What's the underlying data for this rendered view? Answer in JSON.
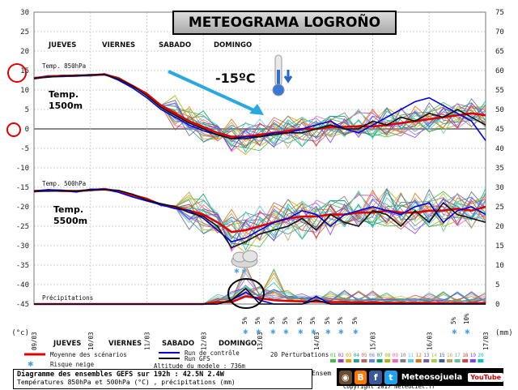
{
  "title": "METEOGRAMA LOGROÑO",
  "chart_data": {
    "type": "line",
    "y_left_ticks": [
      "30",
      "25",
      "20",
      "15",
      "10",
      "5",
      "0",
      "-5",
      "-10",
      "-15",
      "-20",
      "-25",
      "-30",
      "-35",
      "-40",
      "-45",
      "(°c)"
    ],
    "y_right_ticks": [
      "75",
      "70",
      "65",
      "60",
      "55",
      "50",
      "45",
      "40",
      "35",
      "30",
      "25",
      "20",
      "15",
      "10",
      "5",
      "0",
      "(mm)"
    ],
    "ylim_temp": [
      -45,
      30
    ],
    "ylim_precip": [
      0,
      75
    ],
    "days_top": [
      "JUEVES",
      "VIERNES",
      "SABADO",
      "DOMINGO"
    ],
    "days_bottom": [
      "JUEVES",
      "VIERNES",
      "SABADO",
      "DOMINGO"
    ],
    "date_ticks": [
      "09/03",
      "10/03",
      "11/03",
      "12/03",
      "13/03",
      "14/03",
      "15/03",
      "16/03",
      "17/03"
    ],
    "annotations": {
      "temp850_label": "Temp. 850hPa",
      "temp500_label": "Temp. 500hPa",
      "precip_label": "Précipitations",
      "temp1500": [
        "Temp.",
        "1500m"
      ],
      "temp5500": [
        "Temp.",
        "5500m"
      ],
      "arrow_text": "-15ºC",
      "circle_15": "15",
      "circle_0": "0",
      "snow_label": "5%",
      "snow_label_alt": "10%"
    },
    "x_steps": [
      0,
      1,
      2,
      3,
      4,
      5,
      6,
      7,
      8,
      9,
      10,
      11,
      12,
      13,
      14,
      15,
      16,
      17,
      18,
      19,
      20,
      21,
      22,
      23,
      24,
      25,
      26,
      27,
      28,
      29,
      30,
      31,
      32
    ],
    "series": [
      {
        "name": "Moyenne des scénarios",
        "color": "#e00000",
        "t850": [
          13,
          13.5,
          13.6,
          13.7,
          13.8,
          14,
          13,
          11,
          9,
          6,
          4,
          2,
          0.5,
          -1,
          -2,
          -2,
          -1.5,
          -1,
          -0.5,
          0,
          0,
          0.5,
          0.5,
          0.7,
          0.6,
          1,
          1.5,
          2,
          2.5,
          3,
          3.5,
          4,
          3.5
        ],
        "t500": [
          -16,
          -15.8,
          -15.9,
          -16,
          -15.7,
          -15.5,
          -16,
          -17,
          -18,
          -19.5,
          -20,
          -21,
          -22,
          -24,
          -26.5,
          -26,
          -25,
          -24,
          -23,
          -22.5,
          -22.5,
          -22,
          -22,
          -21.5,
          -21.5,
          -21,
          -21.5,
          -21.5,
          -21,
          -21,
          -20.5,
          -21,
          -20
        ],
        "precip": [
          0,
          0,
          0,
          0,
          0,
          0,
          0,
          0,
          0,
          0,
          0,
          0,
          0,
          0.5,
          0.5,
          2,
          1.5,
          1,
          0.8,
          0.7,
          0.6,
          0.5,
          0.5,
          0.4,
          0.4,
          0.3,
          0.3,
          0.3,
          0.3,
          0.2,
          0.2,
          0.2,
          0.3
        ]
      },
      {
        "name": "Run de contrôle",
        "color": "#0000dd",
        "t850": [
          13,
          13.4,
          13.5,
          13.6,
          13.8,
          14,
          12.5,
          10.5,
          8,
          5,
          3,
          1,
          -0.5,
          -1.5,
          -2.5,
          -2,
          -2,
          -1,
          -1,
          0,
          1,
          2,
          0,
          -1,
          1,
          3,
          5,
          7,
          8,
          6,
          4,
          2,
          -3
        ],
        "t500": [
          -16,
          -15.6,
          -15.8,
          -16.2,
          -15.5,
          -15.5,
          -16.3,
          -17.5,
          -18.5,
          -19.5,
          -20.5,
          -21,
          -23,
          -26,
          -29,
          -28,
          -26,
          -24,
          -23,
          -21,
          -22,
          -25,
          -22,
          -21,
          -20,
          -21,
          -22,
          -20,
          -19,
          -24,
          -21,
          -20,
          -22
        ],
        "precip": [
          0,
          0,
          0,
          0,
          0,
          0,
          0,
          0,
          0,
          0,
          0,
          0,
          0,
          0,
          1,
          3,
          1,
          0,
          0,
          0,
          2,
          0,
          0,
          0,
          0,
          0,
          0,
          0,
          0,
          0,
          0,
          0,
          0
        ]
      },
      {
        "name": "Run GFS",
        "color": "#111111",
        "t850": [
          13,
          13.3,
          13.6,
          13.7,
          13.9,
          14,
          12.8,
          11,
          8.5,
          5.5,
          3.5,
          1.5,
          0,
          -1.5,
          -2.5,
          -2.5,
          -2,
          -1.5,
          -1,
          -1,
          0,
          1,
          0,
          0,
          2,
          1,
          3,
          2,
          4,
          3,
          5,
          3,
          1
        ],
        "t500": [
          -16,
          -16,
          -15.9,
          -16,
          -15.7,
          -15.6,
          -15.8,
          -16.8,
          -18.3,
          -19.2,
          -20,
          -21.5,
          -22.5,
          -25,
          -30.5,
          -29,
          -27,
          -26,
          -25,
          -23,
          -26,
          -22,
          -24,
          -25,
          -21,
          -22,
          -25,
          -21,
          -24,
          -19,
          -22,
          -23,
          -24
        ],
        "precip": [
          0,
          0,
          0,
          0,
          0,
          0,
          0,
          0,
          0,
          0,
          0,
          0,
          0,
          0,
          1,
          4,
          0,
          0,
          0,
          0,
          1,
          0,
          0,
          0,
          0,
          0,
          0,
          0,
          0,
          0,
          0,
          0,
          0
        ]
      }
    ],
    "legend": {
      "mean": "Moyenne des scénarios",
      "control": "Run de contrôle",
      "gfs": "Run GFS",
      "snow": "Risque neige",
      "altitude": "Altitude du modele : 736m",
      "perturbations": "20 Perturbations",
      "pert_numbers": [
        "01",
        "02",
        "03",
        "04",
        "05",
        "06",
        "07",
        "08",
        "09",
        "10",
        "11",
        "12",
        "13",
        "14",
        "15",
        "16",
        "17",
        "18",
        "19",
        "20"
      ],
      "ensemble": "Ensem"
    },
    "grid": true
  },
  "footer": {
    "line1": "Diagramme des ensembles GEFS sur 192h : 42.5N 2.4W",
    "line2": "Températures 850hPa et 500hPa (°C) , précipitations (mm)",
    "brand": "Meteosojuela",
    "youtube": "YouTube",
    "copyright": "Copyright 2017 meteociel.fr"
  },
  "colors": {
    "mean": "#e00000",
    "control": "#0000dd",
    "gfs": "#111111",
    "arrow": "#29a8e0",
    "circle": "#e00000",
    "grid": "#bfbfbf",
    "zero_line": "#8a8a8a"
  }
}
